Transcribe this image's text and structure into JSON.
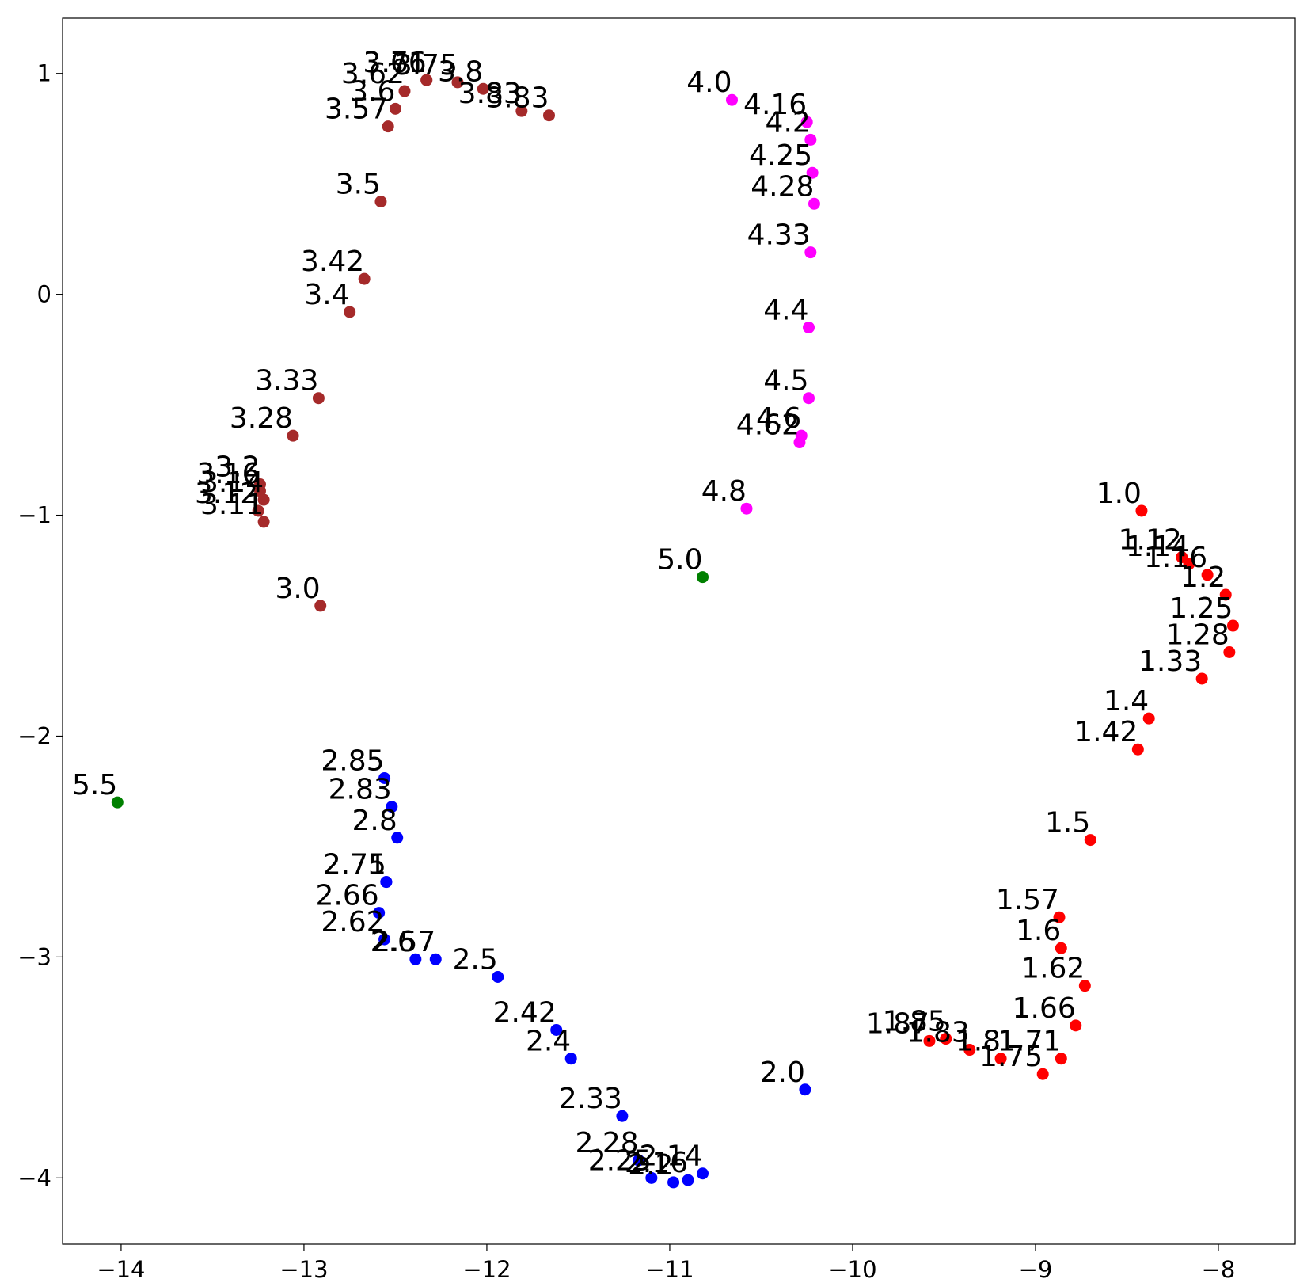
{
  "chart_data": {
    "type": "scatter",
    "title": "",
    "xlabel": "",
    "ylabel": "",
    "xlim": [
      -14.32,
      -7.58
    ],
    "ylim": [
      -4.3,
      1.25
    ],
    "xticks": [
      -14,
      -13,
      -12,
      -11,
      -10,
      -9,
      -8
    ],
    "yticks": [
      1,
      0,
      -1,
      -2,
      -3,
      -4
    ],
    "xtick_labels": [
      "−14",
      "−13",
      "−12",
      "−11",
      "−10",
      "−9",
      "−8"
    ],
    "ytick_labels": [
      "1",
      "0",
      "−1",
      "−2",
      "−3",
      "−4"
    ],
    "grid": false,
    "legend": "none",
    "series": [
      {
        "color": "#ff0000",
        "points": [
          {
            "x": -8.42,
            "y": -0.98,
            "label": "1.0"
          },
          {
            "x": -8.2,
            "y": -1.19,
            "label": "1.12"
          },
          {
            "x": -8.16,
            "y": -1.22,
            "label": "1.14"
          },
          {
            "x": -8.06,
            "y": -1.27,
            "label": "1.16"
          },
          {
            "x": -7.96,
            "y": -1.36,
            "label": "1.2"
          },
          {
            "x": -7.92,
            "y": -1.5,
            "label": "1.25"
          },
          {
            "x": -7.94,
            "y": -1.62,
            "label": "1.28"
          },
          {
            "x": -8.09,
            "y": -1.74,
            "label": "1.33"
          },
          {
            "x": -8.38,
            "y": -1.92,
            "label": "1.4"
          },
          {
            "x": -8.44,
            "y": -2.06,
            "label": "1.42"
          },
          {
            "x": -8.7,
            "y": -2.47,
            "label": "1.5"
          },
          {
            "x": -8.87,
            "y": -2.82,
            "label": "1.57"
          },
          {
            "x": -8.86,
            "y": -2.96,
            "label": "1.6"
          },
          {
            "x": -8.73,
            "y": -3.13,
            "label": "1.62"
          },
          {
            "x": -8.78,
            "y": -3.31,
            "label": "1.66"
          },
          {
            "x": -8.86,
            "y": -3.46,
            "label": "1.71"
          },
          {
            "x": -8.96,
            "y": -3.53,
            "label": "1.75"
          },
          {
            "x": -9.19,
            "y": -3.46,
            "label": "1.8"
          },
          {
            "x": -9.36,
            "y": -3.42,
            "label": "1.83"
          },
          {
            "x": -9.49,
            "y": -3.37,
            "label": "1.85"
          },
          {
            "x": -9.58,
            "y": -3.38,
            "label": "1.87"
          }
        ]
      },
      {
        "color": "#0000ff",
        "points": [
          {
            "x": -10.26,
            "y": -3.6,
            "label": "2.0"
          },
          {
            "x": -10.82,
            "y": -3.98,
            "label": "2.14"
          },
          {
            "x": -10.9,
            "y": -4.01,
            "label": "2.16"
          },
          {
            "x": -10.98,
            "y": -4.02,
            "label": "2.2"
          },
          {
            "x": -11.1,
            "y": -4.0,
            "label": "2.25"
          },
          {
            "x": -11.17,
            "y": -3.92,
            "label": "2.28"
          },
          {
            "x": -11.26,
            "y": -3.72,
            "label": "2.33"
          },
          {
            "x": -11.54,
            "y": -3.46,
            "label": "2.4"
          },
          {
            "x": -11.62,
            "y": -3.33,
            "label": "2.42"
          },
          {
            "x": -11.94,
            "y": -3.09,
            "label": "2.5"
          },
          {
            "x": -12.28,
            "y": -3.01,
            "label": "2.57"
          },
          {
            "x": -12.39,
            "y": -3.01,
            "label": "2.6"
          },
          {
            "x": -12.56,
            "y": -2.92,
            "label": "2.62"
          },
          {
            "x": -12.59,
            "y": -2.8,
            "label": "2.66"
          },
          {
            "x": -12.55,
            "y": -2.66,
            "label": "2.71"
          },
          {
            "x": -12.55,
            "y": -2.66,
            "label": "2.75"
          },
          {
            "x": -12.49,
            "y": -2.46,
            "label": "2.8"
          },
          {
            "x": -12.52,
            "y": -2.32,
            "label": "2.83"
          },
          {
            "x": -12.56,
            "y": -2.19,
            "label": "2.85"
          }
        ]
      },
      {
        "color": "#a52a2a",
        "points": [
          {
            "x": -12.91,
            "y": -1.41,
            "label": "3.0"
          },
          {
            "x": -13.22,
            "y": -1.03,
            "label": "3.11"
          },
          {
            "x": -13.25,
            "y": -0.98,
            "label": "3.12"
          },
          {
            "x": -13.22,
            "y": -0.93,
            "label": "3.14"
          },
          {
            "x": -13.24,
            "y": -0.89,
            "label": "3.16"
          },
          {
            "x": -13.24,
            "y": -0.86,
            "label": "3.2"
          },
          {
            "x": -13.06,
            "y": -0.64,
            "label": "3.28"
          },
          {
            "x": -12.92,
            "y": -0.47,
            "label": "3.33"
          },
          {
            "x": -12.75,
            "y": -0.08,
            "label": "3.4"
          },
          {
            "x": -12.67,
            "y": 0.07,
            "label": "3.42"
          },
          {
            "x": -12.58,
            "y": 0.42,
            "label": "3.5"
          },
          {
            "x": -12.54,
            "y": 0.76,
            "label": "3.57"
          },
          {
            "x": -12.5,
            "y": 0.84,
            "label": "3.6"
          },
          {
            "x": -12.45,
            "y": 0.92,
            "label": "3.62"
          },
          {
            "x": -12.33,
            "y": 0.97,
            "label": "3.66"
          },
          {
            "x": -12.33,
            "y": 0.97,
            "label": "3.71"
          },
          {
            "x": -12.16,
            "y": 0.96,
            "label": "3.75"
          },
          {
            "x": -12.02,
            "y": 0.93,
            "label": "3.8"
          },
          {
            "x": -11.81,
            "y": 0.83,
            "label": "3.83"
          },
          {
            "x": -11.66,
            "y": 0.81,
            "label": "3.83"
          }
        ]
      },
      {
        "color": "#ff00ff",
        "points": [
          {
            "x": -10.66,
            "y": 0.88,
            "label": "4.0"
          },
          {
            "x": -10.25,
            "y": 0.78,
            "label": "4.16"
          },
          {
            "x": -10.23,
            "y": 0.7,
            "label": "4.2"
          },
          {
            "x": -10.22,
            "y": 0.55,
            "label": "4.25"
          },
          {
            "x": -10.21,
            "y": 0.41,
            "label": "4.28"
          },
          {
            "x": -10.23,
            "y": 0.19,
            "label": "4.33"
          },
          {
            "x": -10.24,
            "y": -0.15,
            "label": "4.4"
          },
          {
            "x": -10.24,
            "y": -0.47,
            "label": "4.5"
          },
          {
            "x": -10.28,
            "y": -0.64,
            "label": "4.6"
          },
          {
            "x": -10.29,
            "y": -0.67,
            "label": "4.62"
          },
          {
            "x": -10.58,
            "y": -0.97,
            "label": "4.8"
          }
        ]
      },
      {
        "color": "#008000",
        "points": [
          {
            "x": -10.82,
            "y": -1.28,
            "label": "5.0"
          },
          {
            "x": -14.02,
            "y": -2.3,
            "label": "5.5"
          }
        ]
      }
    ]
  }
}
